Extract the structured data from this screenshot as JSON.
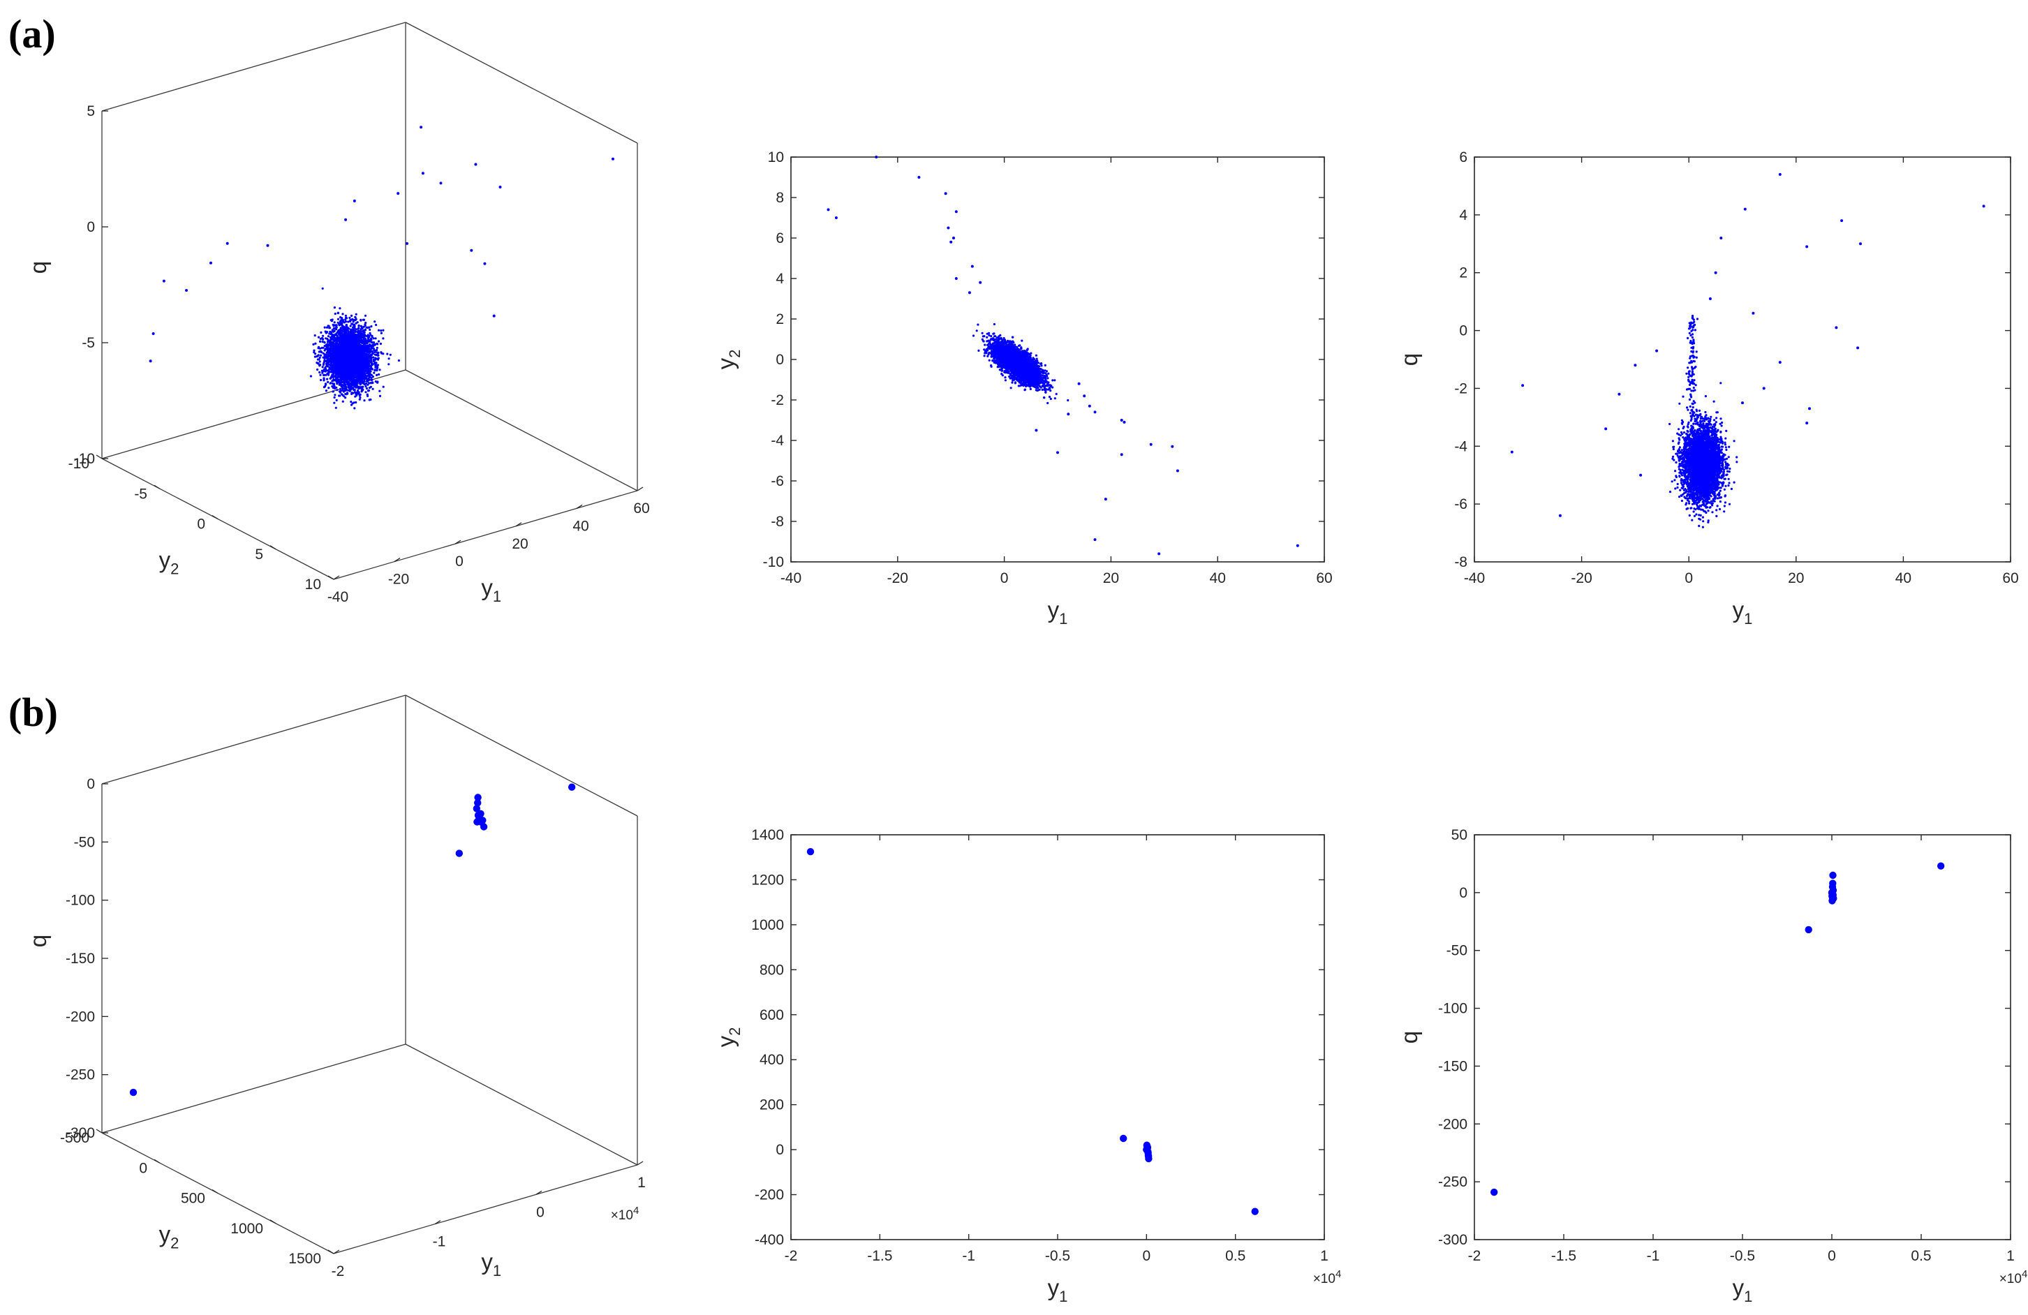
{
  "panel_labels": [
    "(a)",
    "(b)"
  ],
  "chart_data": [
    {
      "id": "a3d",
      "type": "scatter",
      "projection": "3d",
      "xlabel": "y",
      "xlabel_sub": "1",
      "ylabel": "y",
      "ylabel_sub": "2",
      "zlabel": "q",
      "zlabel_sub": "",
      "xlim": [
        -40,
        60
      ],
      "ylim": [
        -10,
        10
      ],
      "zlim": [
        -10,
        5
      ],
      "xticks": [
        "-40",
        "-20",
        "0",
        "20",
        "40",
        "60"
      ],
      "yticks": [
        "-10",
        "-5",
        "0",
        "5",
        "10"
      ],
      "zticks": [
        "-10",
        "-5",
        "0",
        "5"
      ],
      "color": "#0000ff",
      "marker": "dot-small",
      "cluster": {
        "y1_center": 2.5,
        "y2_center": -0.2,
        "q_center": -4.6,
        "n": 4000
      }
    },
    {
      "id": "a12",
      "type": "scatter",
      "xlabel": "y",
      "xlabel_sub": "1",
      "ylabel": "y",
      "ylabel_sub": "2",
      "xlim": [
        -40,
        60
      ],
      "ylim": [
        -10,
        10
      ],
      "xticks": [
        "-40",
        "-20",
        "0",
        "20",
        "40",
        "60"
      ],
      "yticks": [
        "-10",
        "-8",
        "-6",
        "-4",
        "-2",
        "0",
        "2",
        "4",
        "6",
        "8",
        "10"
      ],
      "color": "#0000ff",
      "marker": "dot-small",
      "cluster": {
        "y1_center": 2.5,
        "y2_center": -0.2,
        "n": 4000
      },
      "outliers": [
        [
          -24,
          10
        ],
        [
          -33,
          7.4
        ],
        [
          -31.5,
          7
        ],
        [
          -16,
          9
        ],
        [
          -11,
          8.2
        ],
        [
          -9,
          7.3
        ],
        [
          -10.5,
          6.5
        ],
        [
          -9.5,
          6
        ],
        [
          -10,
          5.8
        ],
        [
          -6,
          4.6
        ],
        [
          -9,
          4
        ],
        [
          -4.5,
          3.8
        ],
        [
          -6.5,
          3.3
        ],
        [
          6,
          -3.5
        ],
        [
          10,
          -4.6
        ],
        [
          12,
          -2.7
        ],
        [
          17,
          -2.6
        ],
        [
          22,
          -3
        ],
        [
          22.5,
          -3.1
        ],
        [
          22,
          -4.7
        ],
        [
          27.5,
          -4.2
        ],
        [
          31.5,
          -4.3
        ],
        [
          32.5,
          -5.5
        ],
        [
          19,
          -6.9
        ],
        [
          17,
          -8.9
        ],
        [
          29,
          -9.6
        ],
        [
          55,
          -9.2
        ],
        [
          14,
          -1.2
        ],
        [
          15,
          -1.8
        ],
        [
          16,
          -2.3
        ]
      ]
    },
    {
      "id": "a1q",
      "type": "scatter",
      "xlabel": "y",
      "xlabel_sub": "1",
      "ylabel": "q",
      "ylabel_sub": "",
      "xlim": [
        -40,
        60
      ],
      "ylim": [
        -8,
        6
      ],
      "xticks": [
        "-40",
        "-20",
        "0",
        "20",
        "40",
        "60"
      ],
      "yticks": [
        "-8",
        "-6",
        "-4",
        "-2",
        "0",
        "2",
        "4",
        "6"
      ],
      "color": "#0000ff",
      "marker": "dot-small",
      "cluster": {
        "y1_center": 2.5,
        "q_center": -4.6,
        "n": 4000
      },
      "outliers": [
        [
          -33,
          -4.2
        ],
        [
          -31,
          -1.9
        ],
        [
          -24,
          -6.4
        ],
        [
          -15.5,
          -3.4
        ],
        [
          -13,
          -2.2
        ],
        [
          -10,
          -1.2
        ],
        [
          -9,
          -5
        ],
        [
          -6,
          -0.7
        ],
        [
          4,
          1.1
        ],
        [
          5,
          2
        ],
        [
          6,
          3.2
        ],
        [
          10.5,
          4.2
        ],
        [
          12,
          0.6
        ],
        [
          17,
          -1.1
        ],
        [
          22,
          2.9
        ],
        [
          22.5,
          -2.7
        ],
        [
          22,
          -3.2
        ],
        [
          27.5,
          0.1
        ],
        [
          28.5,
          3.8
        ],
        [
          31.5,
          -0.6
        ],
        [
          32,
          3
        ],
        [
          17,
          5.4
        ],
        [
          55,
          4.3
        ],
        [
          14,
          -2
        ],
        [
          10,
          -2.5
        ]
      ]
    },
    {
      "id": "b3d",
      "type": "scatter",
      "projection": "3d",
      "xlabel": "y",
      "xlabel_sub": "1",
      "ylabel": "y",
      "ylabel_sub": "2",
      "zlabel": "q",
      "zlabel_sub": "",
      "xlim": [
        -20000,
        10000
      ],
      "ylim": [
        -500,
        1500
      ],
      "zlim": [
        -300,
        0
      ],
      "xticks": [
        "-2",
        "-1",
        "0",
        "1"
      ],
      "yticks": [
        "-500",
        "0",
        "500",
        "1000",
        "1500"
      ],
      "zticks": [
        "-300",
        "-250",
        "-200",
        "-150",
        "-100",
        "-50",
        "0"
      ],
      "x_exponent": "×10",
      "x_exponent_power": "4",
      "color": "#0000ff",
      "marker": "dot-large",
      "points": [
        [
          -18900,
          1325,
          -259
        ],
        [
          -1300,
          50,
          -32
        ],
        [
          6100,
          -275,
          23
        ],
        [
          0,
          0,
          0
        ],
        [
          20,
          15,
          5
        ],
        [
          40,
          -5,
          -2
        ],
        [
          80,
          -20,
          -5
        ],
        [
          100,
          -40,
          -8
        ],
        [
          60,
          10,
          10
        ],
        [
          30,
          5,
          15
        ],
        [
          90,
          -30,
          -3
        ],
        [
          -20,
          8,
          -6
        ],
        [
          70,
          -15,
          2
        ]
      ]
    },
    {
      "id": "b12",
      "type": "scatter",
      "xlabel": "y",
      "xlabel_sub": "1",
      "ylabel": "y",
      "ylabel_sub": "2",
      "xlim": [
        -20000,
        10000
      ],
      "ylim": [
        -400,
        1400
      ],
      "xticks": [
        "-2",
        "-1.5",
        "-1",
        "-0.5",
        "0",
        "0.5",
        "1"
      ],
      "yticks": [
        "-400",
        "-200",
        "0",
        "200",
        "400",
        "600",
        "800",
        "1000",
        "1200",
        "1400"
      ],
      "x_exponent": "×10",
      "x_exponent_power": "4",
      "color": "#0000ff",
      "marker": "dot-large",
      "points": [
        [
          -18900,
          1325
        ],
        [
          -1300,
          50
        ],
        [
          6100,
          -275
        ],
        [
          0,
          0
        ],
        [
          30,
          15
        ],
        [
          60,
          10
        ],
        [
          80,
          -10
        ],
        [
          100,
          -25
        ],
        [
          120,
          -40
        ],
        [
          50,
          5
        ],
        [
          90,
          -15
        ],
        [
          20,
          20
        ],
        [
          110,
          -30
        ]
      ]
    },
    {
      "id": "b1q",
      "type": "scatter",
      "xlabel": "y",
      "xlabel_sub": "1",
      "ylabel": "q",
      "ylabel_sub": "",
      "xlim": [
        -20000,
        10000
      ],
      "ylim": [
        -300,
        50
      ],
      "xticks": [
        "-2",
        "-1.5",
        "-1",
        "-0.5",
        "0",
        "0.5",
        "1"
      ],
      "yticks": [
        "-300",
        "-250",
        "-200",
        "-150",
        "-100",
        "-50",
        "0",
        "50"
      ],
      "x_exponent": "×10",
      "x_exponent_power": "4",
      "color": "#0000ff",
      "marker": "dot-large",
      "points": [
        [
          -18900,
          -259
        ],
        [
          -1300,
          -32
        ],
        [
          6100,
          23
        ],
        [
          0,
          0
        ],
        [
          40,
          5
        ],
        [
          60,
          15
        ],
        [
          80,
          2
        ],
        [
          30,
          -4
        ],
        [
          20,
          -7
        ],
        [
          70,
          -2
        ],
        [
          50,
          8
        ],
        [
          90,
          -5
        ],
        [
          10,
          -3
        ]
      ]
    }
  ]
}
